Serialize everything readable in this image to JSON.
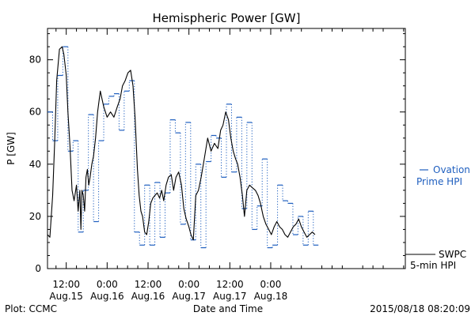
{
  "chart_data": {
    "type": "line",
    "title": "Hemispheric Power [GW]",
    "xlabel": "Date and Time",
    "ylabel": "P [GW]",
    "ylim": [
      0,
      92
    ],
    "yticks": [
      0,
      20,
      40,
      60,
      80
    ],
    "xlim_hours": [
      6.5,
      111.5
    ],
    "xticks": [
      {
        "hour": 12,
        "time": "12:00",
        "date": "Aug.15"
      },
      {
        "hour": 24,
        "time": "0:00",
        "date": "Aug.16"
      },
      {
        "hour": 36,
        "time": "12:00",
        "date": "Aug.16"
      },
      {
        "hour": 48,
        "time": "0:00",
        "date": "Aug.17"
      },
      {
        "hour": 60,
        "time": "12:00",
        "date": "Aug.17"
      },
      {
        "hour": 72,
        "time": "0:00",
        "date": "Aug.18"
      }
    ],
    "grid": false,
    "legend": [
      {
        "label_lines": [
          "Ovation",
          "Prime HPI"
        ],
        "color": "#1f5fbf",
        "style": "dashed"
      },
      {
        "label_lines": [
          "SWPC",
          "5-min HPI"
        ],
        "color": "#000000",
        "style": "solid"
      }
    ],
    "series": [
      {
        "name": "SWPC 5-min HPI",
        "color": "#000000",
        "x_hours": [
          6.5,
          7.2,
          8.0,
          8.6,
          9.2,
          10.0,
          10.8,
          11.3,
          12.0,
          12.5,
          13.1,
          13.7,
          14.3,
          15.0,
          15.5,
          16.0,
          16.3,
          16.6,
          17.0,
          17.4,
          17.8,
          18.2,
          18.6,
          19.0,
          19.5,
          20.0,
          20.6,
          21.2,
          22.0,
          23.0,
          24.0,
          25.0,
          26.0,
          27.0,
          27.8,
          28.5,
          29.3,
          30.1,
          30.9,
          31.6,
          32.2,
          32.9,
          33.4,
          33.9,
          34.4,
          35.0,
          35.6,
          36.2,
          36.8,
          37.4,
          38.0,
          38.7,
          39.4,
          40.0,
          40.6,
          41.3,
          42.0,
          42.8,
          43.5,
          44.2,
          45.0,
          45.8,
          46.5,
          47.2,
          48.0,
          48.6,
          49.3,
          50.0,
          50.8,
          51.6,
          52.5,
          53.5,
          54.5,
          55.5,
          56.5,
          57.3,
          58.0,
          58.8,
          59.6,
          60.3,
          61.0,
          61.7,
          62.3,
          63.0,
          63.7,
          64.3,
          65.0,
          65.8,
          66.6,
          67.5,
          68.3,
          69.0,
          69.8,
          70.6,
          71.4,
          72.2,
          73.0,
          73.8,
          74.6,
          75.4,
          76.2,
          77.0,
          77.8,
          78.6,
          79.4,
          80.2,
          81.0,
          81.8,
          82.6,
          83.4,
          84.2,
          85.0
        ],
        "values": [
          13,
          12,
          28,
          48,
          72,
          84,
          85,
          82,
          74,
          60,
          47,
          30,
          26,
          32,
          22,
          30,
          15,
          30,
          28,
          22,
          35,
          38,
          32,
          35,
          40,
          43,
          50,
          60,
          68,
          62,
          58,
          60,
          58,
          62,
          65,
          70,
          72,
          75,
          76,
          70,
          58,
          38,
          28,
          22,
          20,
          14,
          13,
          18,
          25,
          27,
          28,
          29,
          27,
          30,
          26,
          32,
          35,
          36,
          30,
          35,
          37,
          32,
          23,
          19,
          16,
          13,
          11,
          28,
          30,
          35,
          42,
          50,
          45,
          48,
          46,
          53,
          55,
          60,
          57,
          50,
          45,
          42,
          40,
          35,
          28,
          20,
          30,
          32,
          31,
          30,
          28,
          25,
          20,
          17,
          15,
          13,
          16,
          18,
          16,
          15,
          13,
          12,
          14,
          16,
          17,
          19,
          16,
          14,
          12,
          13,
          14,
          13
        ]
      },
      {
        "name": "Ovation Prime HPI",
        "color": "#1f5fbf",
        "step_hours": 1.5,
        "x_hours": [
          6.5,
          8.0,
          9.5,
          11.0,
          12.5,
          14.0,
          15.5,
          17.0,
          18.5,
          20.0,
          21.5,
          23.0,
          24.5,
          26.0,
          27.5,
          29.0,
          30.5,
          32.0,
          33.5,
          35.0,
          36.5,
          38.0,
          39.5,
          41.0,
          42.5,
          44.0,
          45.5,
          47.0,
          48.5,
          50.0,
          51.5,
          53.0,
          54.5,
          56.0,
          57.5,
          59.0,
          60.5,
          62.0,
          63.5,
          65.0,
          66.5,
          68.0,
          69.5,
          71.0,
          72.5,
          74.0,
          75.5,
          77.0,
          78.5,
          80.0,
          81.5,
          83.0,
          84.5
        ],
        "values": [
          60,
          49,
          74,
          85,
          45,
          49,
          14,
          30,
          59,
          18,
          49,
          63,
          66,
          67,
          53,
          68,
          72,
          14,
          9,
          32,
          9,
          33,
          12,
          29,
          57,
          52,
          17,
          56,
          11,
          40,
          8,
          41,
          51,
          50,
          35,
          63,
          37,
          58,
          23,
          56,
          15,
          24,
          42,
          8,
          9,
          32,
          26,
          25,
          13,
          20,
          9,
          22,
          9
        ]
      }
    ],
    "plot_label": "Plot: CCMC",
    "timestamp": "2015/08/18 08:20:09"
  }
}
